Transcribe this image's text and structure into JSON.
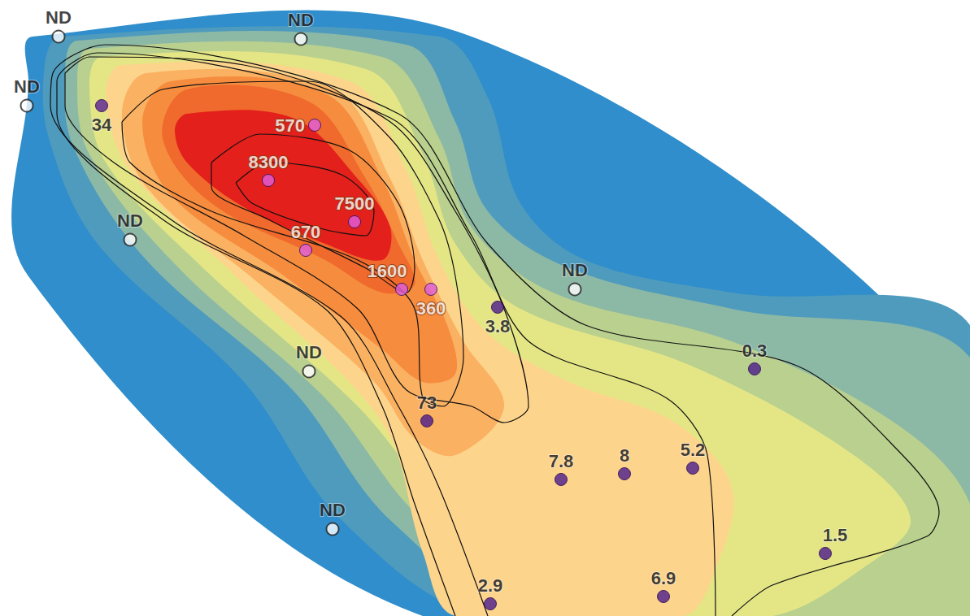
{
  "chart_data": {
    "type": "map",
    "tick_labels": false,
    "xlim": [
      0,
      1193
    ],
    "ylim": [
      0,
      758
    ],
    "bands": [
      {
        "color": "#2f8ecb",
        "outline": [
          [
            40,
            45
          ],
          [
            580,
            45
          ],
          [
            1193,
            480
          ],
          [
            1193,
            758
          ],
          [
            520,
            758
          ],
          [
            35,
            340
          ],
          [
            35,
            100
          ]
        ]
      },
      {
        "color": "#4f9bbd",
        "outline": [
          [
            75,
            45
          ],
          [
            540,
            45
          ],
          [
            600,
            120
          ],
          [
            640,
            250
          ],
          [
            720,
            320
          ],
          [
            900,
            360
          ],
          [
            1193,
            400
          ],
          [
            1193,
            758
          ],
          [
            600,
            758
          ],
          [
            420,
            640
          ],
          [
            300,
            470
          ],
          [
            120,
            300
          ],
          [
            60,
            170
          ],
          [
            55,
            80
          ]
        ]
      },
      {
        "color": "#8cb8a6",
        "outline": [
          [
            95,
            50
          ],
          [
            500,
            55
          ],
          [
            560,
            150
          ],
          [
            600,
            260
          ],
          [
            700,
            330
          ],
          [
            900,
            380
          ],
          [
            1193,
            440
          ],
          [
            1193,
            758
          ],
          [
            660,
            758
          ],
          [
            480,
            640
          ],
          [
            360,
            480
          ],
          [
            180,
            320
          ],
          [
            90,
            180
          ],
          [
            80,
            90
          ]
        ]
      },
      {
        "color": "#b9d08f",
        "outline": [
          [
            110,
            60
          ],
          [
            470,
            70
          ],
          [
            540,
            170
          ],
          [
            580,
            280
          ],
          [
            680,
            360
          ],
          [
            900,
            420
          ],
          [
            1100,
            520
          ],
          [
            1193,
            620
          ],
          [
            1193,
            758
          ],
          [
            700,
            758
          ],
          [
            520,
            640
          ],
          [
            400,
            490
          ],
          [
            220,
            330
          ],
          [
            110,
            190
          ],
          [
            95,
            100
          ]
        ]
      },
      {
        "color": "#e4e686",
        "outline": [
          [
            125,
            70
          ],
          [
            450,
            85
          ],
          [
            520,
            190
          ],
          [
            560,
            300
          ],
          [
            640,
            380
          ],
          [
            850,
            450
          ],
          [
            1050,
            560
          ],
          [
            1120,
            640
          ],
          [
            1060,
            700
          ],
          [
            950,
            758
          ],
          [
            740,
            758
          ],
          [
            560,
            640
          ],
          [
            440,
            500
          ],
          [
            250,
            330
          ],
          [
            130,
            200
          ],
          [
            110,
            110
          ]
        ]
      },
      {
        "color": "#fdd48c",
        "outline": [
          [
            150,
            80
          ],
          [
            430,
            100
          ],
          [
            500,
            210
          ],
          [
            540,
            320
          ],
          [
            600,
            410
          ],
          [
            700,
            470
          ],
          [
            830,
            520
          ],
          [
            900,
            600
          ],
          [
            880,
            700
          ],
          [
            840,
            758
          ],
          [
            560,
            758
          ],
          [
            520,
            680
          ],
          [
            470,
            520
          ],
          [
            290,
            340
          ],
          [
            160,
            210
          ],
          [
            130,
            120
          ]
        ]
      },
      {
        "color": "#fbb162",
        "outline": [
          [
            180,
            90
          ],
          [
            410,
            110
          ],
          [
            480,
            220
          ],
          [
            520,
            320
          ],
          [
            570,
            420
          ],
          [
            620,
            500
          ],
          [
            560,
            560
          ],
          [
            510,
            540
          ],
          [
            460,
            470
          ],
          [
            320,
            350
          ],
          [
            180,
            230
          ],
          [
            150,
            140
          ]
        ]
      },
      {
        "color": "#f68c3e",
        "outline": [
          [
            210,
            100
          ],
          [
            400,
            115
          ],
          [
            470,
            220
          ],
          [
            510,
            320
          ],
          [
            550,
            400
          ],
          [
            560,
            460
          ],
          [
            520,
            470
          ],
          [
            470,
            430
          ],
          [
            350,
            340
          ],
          [
            210,
            240
          ],
          [
            175,
            150
          ]
        ]
      },
      {
        "color": "#ef6a2c",
        "outline": [
          [
            230,
            110
          ],
          [
            380,
            125
          ],
          [
            450,
            220
          ],
          [
            490,
            300
          ],
          [
            510,
            350
          ],
          [
            470,
            360
          ],
          [
            400,
            320
          ],
          [
            260,
            250
          ],
          [
            200,
            170
          ]
        ]
      },
      {
        "color": "#e3201c",
        "outline": [
          [
            230,
            140
          ],
          [
            360,
            145
          ],
          [
            440,
            220
          ],
          [
            480,
            280
          ],
          [
            470,
            320
          ],
          [
            400,
            300
          ],
          [
            300,
            255
          ],
          [
            230,
            200
          ],
          [
            215,
            160
          ]
        ]
      }
    ],
    "contours": [
      [
        [
          290,
          225
        ],
        [
          330,
          200
        ],
        [
          420,
          215
        ],
        [
          460,
          260
        ],
        [
          450,
          290
        ],
        [
          390,
          280
        ],
        [
          310,
          250
        ],
        [
          290,
          225
        ]
      ],
      [
        [
          260,
          200
        ],
        [
          320,
          165
        ],
        [
          430,
          185
        ],
        [
          490,
          250
        ],
        [
          510,
          330
        ],
        [
          500,
          360
        ],
        [
          450,
          330
        ],
        [
          330,
          270
        ],
        [
          260,
          230
        ],
        [
          260,
          200
        ]
      ],
      [
        [
          150,
          150
        ],
        [
          200,
          110
        ],
        [
          380,
          100
        ],
        [
          480,
          170
        ],
        [
          540,
          270
        ],
        [
          560,
          340
        ],
        [
          570,
          440
        ],
        [
          545,
          500
        ],
        [
          520,
          490
        ],
        [
          510,
          380
        ],
        [
          440,
          320
        ],
        [
          260,
          260
        ],
        [
          160,
          200
        ],
        [
          150,
          150
        ]
      ],
      [
        [
          80,
          90
        ],
        [
          110,
          70
        ],
        [
          300,
          80
        ],
        [
          480,
          150
        ],
        [
          560,
          260
        ],
        [
          620,
          380
        ],
        [
          650,
          500
        ],
        [
          620,
          520
        ],
        [
          580,
          500
        ],
        [
          500,
          480
        ],
        [
          440,
          380
        ],
        [
          300,
          290
        ],
        [
          140,
          200
        ],
        [
          80,
          130
        ],
        [
          80,
          90
        ]
      ],
      [
        [
          560,
          758
        ],
        [
          510,
          620
        ],
        [
          470,
          500
        ],
        [
          400,
          380
        ],
        [
          200,
          270
        ],
        [
          70,
          140
        ],
        [
          70,
          100
        ],
        [
          120,
          65
        ],
        [
          480,
          145
        ],
        [
          580,
          290
        ],
        [
          650,
          420
        ],
        [
          820,
          490
        ],
        [
          870,
          560
        ],
        [
          880,
          758
        ]
      ],
      [
        [
          600,
          758
        ],
        [
          540,
          600
        ],
        [
          490,
          500
        ],
        [
          420,
          390
        ],
        [
          210,
          270
        ],
        [
          62,
          130
        ],
        [
          65,
          90
        ],
        [
          130,
          55
        ],
        [
          490,
          140
        ],
        [
          600,
          300
        ],
        [
          720,
          400
        ],
        [
          980,
          450
        ],
        [
          1110,
          560
        ],
        [
          1155,
          630
        ],
        [
          1140,
          660
        ],
        [
          950,
          720
        ],
        [
          900,
          758
        ]
      ]
    ],
    "samples": {
      "x": [
        72,
        370,
        33,
        125,
        387,
        330,
        436,
        376,
        494,
        530,
        612,
        707,
        160,
        380,
        928,
        525,
        690,
        768,
        852,
        409,
        1015,
        603,
        816
      ],
      "y": [
        45,
        48,
        130,
        130,
        154,
        222,
        273,
        308,
        356,
        356,
        378,
        356,
        295,
        457,
        454,
        518,
        590,
        583,
        576,
        651,
        681,
        743,
        734
      ],
      "values": [
        null,
        null,
        null,
        34,
        570,
        8300,
        7500,
        670,
        1600,
        360,
        3.8,
        null,
        null,
        null,
        0.3,
        73,
        7.8,
        8,
        5.2,
        null,
        1.5,
        2.9,
        6.9
      ],
      "value_labels": [
        "ND",
        "ND",
        "ND",
        "34",
        "570",
        "8300",
        "7500",
        "670",
        "1600",
        "360",
        "3.8",
        "ND",
        "ND",
        "ND",
        "0.3",
        "73",
        "7.8",
        "8",
        "5.2",
        "ND",
        "1.5",
        "2.9",
        "6.9"
      ],
      "colors": [
        "#ffffff",
        "#ffffff",
        "#ffffff",
        "#5a1f96",
        "#e05ee0",
        "#e05ee0",
        "#e05ee0",
        "#e05ee0",
        "#e05ee0",
        "#e05ee0",
        "#4b1a8c",
        "#ffffff",
        "#ffffff",
        "#ffffff",
        "#4b1a8c",
        "#4b1a8c",
        "#4b1a8c",
        "#4b1a8c",
        "#4b1a8c",
        "#ffffff",
        "#4b1a8c",
        "#4b1a8c",
        "#4b1a8c"
      ]
    }
  }
}
